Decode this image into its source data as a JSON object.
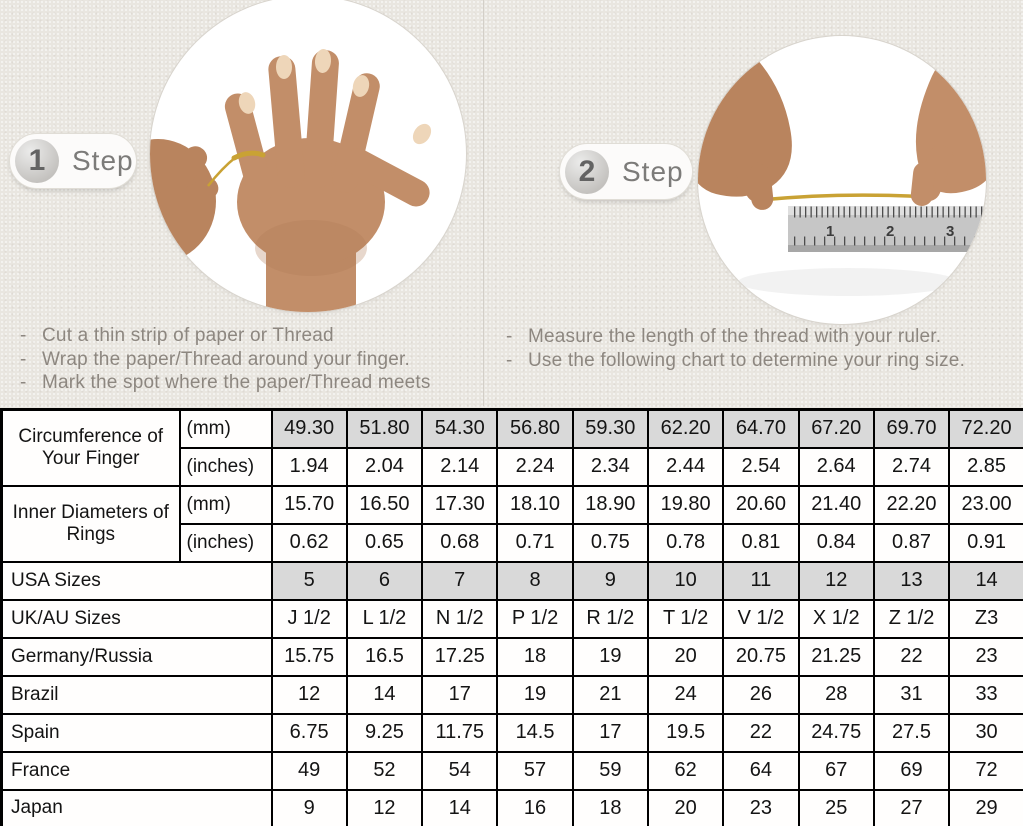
{
  "page": {
    "bg_color": "#e9e6e0",
    "highlight_color": "#d9d9d9",
    "gold_thread_color": "#c9a234"
  },
  "steps": [
    {
      "number": "1",
      "label": "Step",
      "image": "hand-with-thread-wrapped-around-ring-finger",
      "instructions": [
        "Cut a thin strip of paper or Thread",
        "Wrap the paper/Thread around your finger.",
        "Mark the spot where the paper/Thread meets"
      ]
    },
    {
      "number": "2",
      "label": "Step",
      "image": "hands-measuring-thread-length-on-ruler",
      "instructions": [
        "Measure the length of the thread with your ruler.",
        "Use the following chart to determine your ring size."
      ]
    }
  ],
  "chart_data": {
    "type": "table",
    "title": "Ring size conversion chart",
    "columns": 10,
    "rows": [
      {
        "group": "Circumference of Your Finger",
        "span_start": true,
        "unit": "(mm)",
        "highlight": true,
        "values": [
          "49.30",
          "51.80",
          "54.30",
          "56.80",
          "59.30",
          "62.20",
          "64.70",
          "67.20",
          "69.70",
          "72.20"
        ]
      },
      {
        "group": "Circumference of Your Finger",
        "span_start": false,
        "unit": "(inches)",
        "highlight": false,
        "values": [
          "1.94",
          "2.04",
          "2.14",
          "2.24",
          "2.34",
          "2.44",
          "2.54",
          "2.64",
          "2.74",
          "2.85"
        ]
      },
      {
        "group": "Inner Diameters of Rings",
        "span_start": true,
        "unit": "(mm)",
        "highlight": false,
        "values": [
          "15.70",
          "16.50",
          "17.30",
          "18.10",
          "18.90",
          "19.80",
          "20.60",
          "21.40",
          "22.20",
          "23.00"
        ]
      },
      {
        "group": "Inner Diameters of Rings",
        "span_start": false,
        "unit": "(inches)",
        "highlight": false,
        "values": [
          "0.62",
          "0.65",
          "0.68",
          "0.71",
          "0.75",
          "0.78",
          "0.81",
          "0.84",
          "0.87",
          "0.91"
        ]
      },
      {
        "label": "USA Sizes",
        "highlight": true,
        "values": [
          "5",
          "6",
          "7",
          "8",
          "9",
          "10",
          "11",
          "12",
          "13",
          "14"
        ]
      },
      {
        "label": "UK/AU Sizes",
        "highlight": false,
        "values": [
          "J 1/2",
          "L 1/2",
          "N 1/2",
          "P 1/2",
          "R 1/2",
          "T 1/2",
          "V 1/2",
          "X 1/2",
          "Z 1/2",
          "Z3"
        ]
      },
      {
        "label": "Germany/Russia",
        "highlight": false,
        "values": [
          "15.75",
          "16.5",
          "17.25",
          "18",
          "19",
          "20",
          "20.75",
          "21.25",
          "22",
          "23"
        ]
      },
      {
        "label": "Brazil",
        "highlight": false,
        "values": [
          "12",
          "14",
          "17",
          "19",
          "21",
          "24",
          "26",
          "28",
          "31",
          "33"
        ]
      },
      {
        "label": "Spain",
        "highlight": false,
        "values": [
          "6.75",
          "9.25",
          "11.75",
          "14.5",
          "17",
          "19.5",
          "22",
          "24.75",
          "27.5",
          "30"
        ]
      },
      {
        "label": "France",
        "highlight": false,
        "values": [
          "49",
          "52",
          "54",
          "57",
          "59",
          "62",
          "64",
          "67",
          "69",
          "72"
        ]
      },
      {
        "label": "Japan",
        "highlight": false,
        "values": [
          "9",
          "12",
          "14",
          "16",
          "18",
          "20",
          "23",
          "25",
          "27",
          "29"
        ]
      }
    ]
  }
}
